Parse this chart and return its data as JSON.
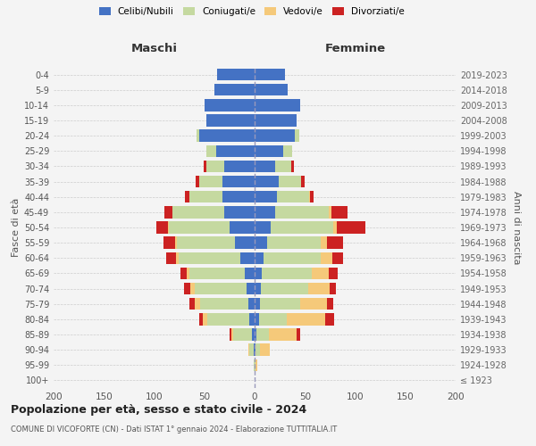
{
  "age_groups": [
    "100+",
    "95-99",
    "90-94",
    "85-89",
    "80-84",
    "75-79",
    "70-74",
    "65-69",
    "60-64",
    "55-59",
    "50-54",
    "45-49",
    "40-44",
    "35-39",
    "30-34",
    "25-29",
    "20-24",
    "15-19",
    "10-14",
    "5-9",
    "0-4"
  ],
  "birth_years": [
    "≤ 1923",
    "1924-1928",
    "1929-1933",
    "1934-1938",
    "1939-1943",
    "1944-1948",
    "1949-1953",
    "1954-1958",
    "1959-1963",
    "1964-1968",
    "1969-1973",
    "1974-1978",
    "1979-1983",
    "1984-1988",
    "1989-1993",
    "1994-1998",
    "1999-2003",
    "2004-2008",
    "2009-2013",
    "2014-2018",
    "2019-2023"
  ],
  "maschi": {
    "celibi": [
      0,
      0,
      1,
      3,
      5,
      6,
      8,
      10,
      14,
      20,
      25,
      30,
      32,
      32,
      30,
      38,
      55,
      48,
      50,
      40,
      37
    ],
    "coniugati": [
      0,
      1,
      4,
      18,
      42,
      48,
      52,
      55,
      62,
      57,
      60,
      52,
      33,
      23,
      18,
      10,
      3,
      0,
      0,
      0,
      0
    ],
    "vedovi": [
      0,
      0,
      1,
      2,
      5,
      6,
      4,
      3,
      2,
      2,
      1,
      0,
      0,
      0,
      0,
      0,
      0,
      0,
      0,
      0,
      0
    ],
    "divorziati": [
      0,
      0,
      0,
      2,
      3,
      5,
      6,
      6,
      10,
      12,
      12,
      8,
      4,
      4,
      3,
      0,
      0,
      0,
      0,
      0,
      0
    ]
  },
  "femmine": {
    "nubili": [
      0,
      0,
      1,
      2,
      4,
      5,
      6,
      7,
      9,
      12,
      16,
      20,
      22,
      24,
      20,
      28,
      40,
      42,
      45,
      33,
      30
    ],
    "coniugate": [
      0,
      1,
      4,
      12,
      28,
      40,
      47,
      50,
      57,
      54,
      62,
      54,
      32,
      22,
      16,
      9,
      4,
      0,
      0,
      0,
      0
    ],
    "vedove": [
      0,
      2,
      10,
      28,
      38,
      27,
      22,
      17,
      11,
      6,
      4,
      2,
      1,
      0,
      0,
      0,
      0,
      0,
      0,
      0,
      0
    ],
    "divorziate": [
      0,
      0,
      0,
      3,
      9,
      6,
      6,
      9,
      11,
      16,
      28,
      16,
      4,
      4,
      3,
      0,
      0,
      0,
      0,
      0,
      0
    ]
  },
  "colors": {
    "celibi": "#4472c4",
    "coniugati": "#c5d9a0",
    "vedovi": "#f5c97a",
    "divorziati": "#cc2222"
  },
  "xlim": 200,
  "title": "Popolazione per età, sesso e stato civile - 2024",
  "subtitle": "COMUNE DI VICOFORTE (CN) - Dati ISTAT 1° gennaio 2024 - Elaborazione TUTTITALIA.IT",
  "ylabel_left": "Fasce di età",
  "ylabel_right": "Anni di nascita",
  "xlabel_left": "Maschi",
  "xlabel_right": "Femmine",
  "bg_color": "#f4f4f4",
  "grid_color": "#cccccc",
  "legend_labels": [
    "Celibi/Nubili",
    "Coniugati/e",
    "Vedovi/e",
    "Divorziati/e"
  ]
}
